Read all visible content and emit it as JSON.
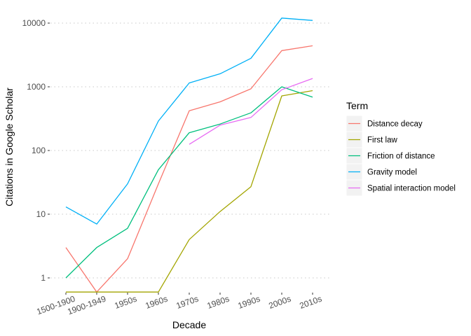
{
  "chart_data": {
    "type": "line",
    "title": "",
    "xlabel": "Decade",
    "ylabel": "Citations in Google Scholar",
    "y_scale": "log10",
    "ylim": [
      0.6,
      12000
    ],
    "y_ticks": [
      1,
      10,
      100,
      1000,
      10000
    ],
    "y_tick_labels": [
      "1",
      "10",
      "100",
      "1000",
      "10000"
    ],
    "grid": "horizontal dotted",
    "categories": [
      "1500-1900",
      "1900-1949",
      "1950s",
      "1960s",
      "1970s",
      "1980s",
      "1990s",
      "2000s",
      "2010s"
    ],
    "legend": {
      "title": "Term",
      "position": "right"
    },
    "series": [
      {
        "name": "Distance decay",
        "color": "#F8766D",
        "values": [
          3,
          0.6,
          2,
          30,
          420,
          580,
          930,
          3700,
          4400
        ]
      },
      {
        "name": "First law",
        "color": "#A3A500",
        "values": [
          0.6,
          0.6,
          0.6,
          0.6,
          4,
          11,
          27,
          720,
          870
        ]
      },
      {
        "name": "Friction of distance",
        "color": "#00BF7D",
        "values": [
          1,
          3,
          6,
          50,
          190,
          260,
          390,
          1000,
          690
        ]
      },
      {
        "name": "Gravity model",
        "color": "#00B0F6",
        "values": [
          13,
          7,
          30,
          290,
          1150,
          1600,
          2800,
          12000,
          11000
        ]
      },
      {
        "name": "Spatial interaction model",
        "color": "#E76BF3",
        "values": [
          null,
          null,
          null,
          null,
          125,
          250,
          330,
          900,
          1350
        ]
      }
    ]
  }
}
